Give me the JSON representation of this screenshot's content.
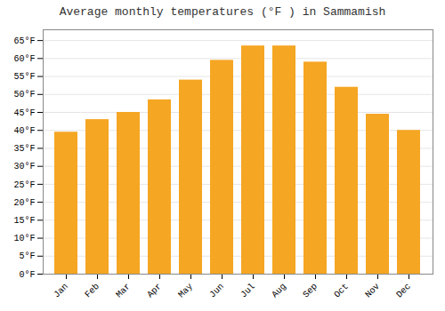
{
  "chart_data": {
    "type": "bar",
    "title": "Average monthly temperatures (°F ) in Sammamish",
    "categories": [
      "Jan",
      "Feb",
      "Mar",
      "Apr",
      "May",
      "Jun",
      "Jul",
      "Aug",
      "Sep",
      "Oct",
      "Nov",
      "Dec"
    ],
    "values": [
      39.5,
      43,
      45,
      48.5,
      54,
      59.5,
      63.5,
      63.5,
      59,
      52,
      44.5,
      40
    ],
    "color": "#F5A623",
    "ylim": [
      0,
      68
    ],
    "yticks": [
      {
        "value": 0,
        "label": "0°F"
      },
      {
        "value": 5,
        "label": "5°F"
      },
      {
        "value": 10,
        "label": "10°F"
      },
      {
        "value": 15,
        "label": "15°F"
      },
      {
        "value": 20,
        "label": "20°F"
      },
      {
        "value": 25,
        "label": "25°F"
      },
      {
        "value": 30,
        "label": "30°F"
      },
      {
        "value": 35,
        "label": "35°F"
      },
      {
        "value": 40,
        "label": "40°F"
      },
      {
        "value": 45,
        "label": "45°F"
      },
      {
        "value": 50,
        "label": "50°F"
      },
      {
        "value": 55,
        "label": "55°F"
      },
      {
        "value": 60,
        "label": "60°F"
      },
      {
        "value": 65,
        "label": "65°F"
      }
    ],
    "grid": true
  }
}
